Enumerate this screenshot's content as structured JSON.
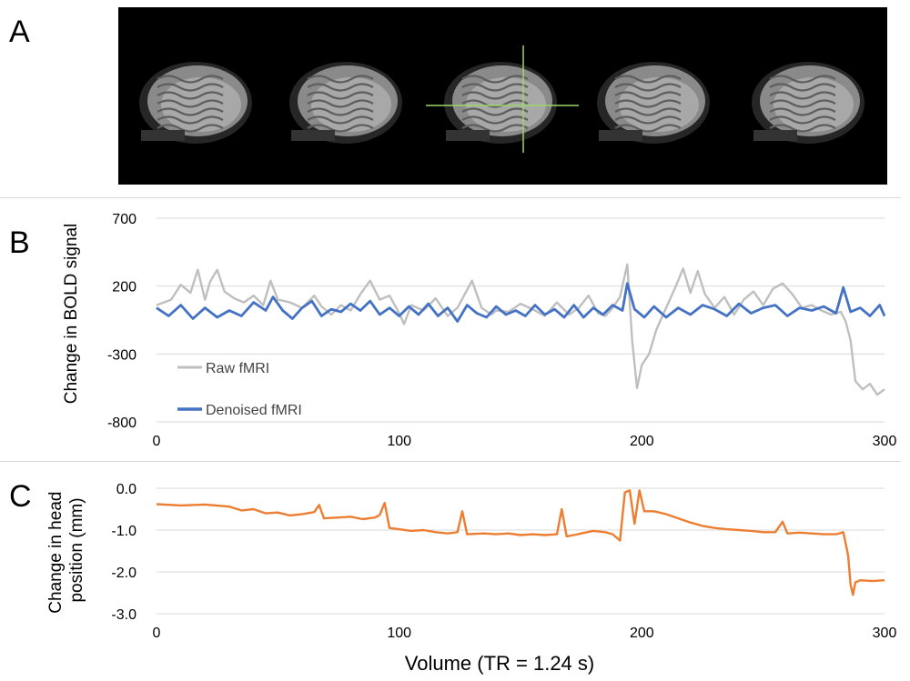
{
  "panels": {
    "a": {
      "label": "A"
    },
    "b": {
      "label": "B"
    },
    "c": {
      "label": "C"
    }
  },
  "brain_panel": {
    "slice_count": 5,
    "crosshair_color": "#9bd56a",
    "crosshair_slice": 3
  },
  "xlabel": "Volume (TR = 1.24 s)",
  "chart_data": [
    {
      "type": "line",
      "panel": "B",
      "ylabel": "Change in BOLD signal",
      "xlim": [
        0,
        300
      ],
      "ylim": [
        -800,
        700
      ],
      "xticks": [
        "0",
        "100",
        "200",
        "300"
      ],
      "yticks": [
        "700",
        "200",
        "-300",
        "-800"
      ],
      "grid": true,
      "legend_position": "bottom-left",
      "series": [
        {
          "name": "Raw fMRI",
          "color": "#bfbfbf",
          "points": [
            [
              0,
              60
            ],
            [
              6,
              100
            ],
            [
              10,
              210
            ],
            [
              14,
              150
            ],
            [
              17,
              320
            ],
            [
              20,
              100
            ],
            [
              22,
              230
            ],
            [
              25,
              320
            ],
            [
              28,
              160
            ],
            [
              32,
              110
            ],
            [
              36,
              80
            ],
            [
              40,
              130
            ],
            [
              44,
              60
            ],
            [
              47,
              240
            ],
            [
              50,
              100
            ],
            [
              55,
              80
            ],
            [
              60,
              40
            ],
            [
              65,
              130
            ],
            [
              68,
              50
            ],
            [
              72,
              -10
            ],
            [
              76,
              60
            ],
            [
              80,
              20
            ],
            [
              84,
              140
            ],
            [
              88,
              240
            ],
            [
              92,
              100
            ],
            [
              96,
              130
            ],
            [
              100,
              0
            ],
            [
              102,
              -80
            ],
            [
              105,
              60
            ],
            [
              110,
              20
            ],
            [
              115,
              110
            ],
            [
              120,
              -20
            ],
            [
              124,
              40
            ],
            [
              127,
              140
            ],
            [
              130,
              240
            ],
            [
              134,
              40
            ],
            [
              138,
              -10
            ],
            [
              140,
              20
            ],
            [
              145,
              10
            ],
            [
              150,
              70
            ],
            [
              155,
              30
            ],
            [
              160,
              -20
            ],
            [
              165,
              80
            ],
            [
              170,
              -10
            ],
            [
              174,
              40
            ],
            [
              178,
              130
            ],
            [
              182,
              0
            ],
            [
              185,
              -20
            ],
            [
              188,
              40
            ],
            [
              191,
              120
            ],
            [
              194,
              360
            ],
            [
              196,
              -200
            ],
            [
              198,
              -550
            ],
            [
              200,
              -380
            ],
            [
              203,
              -300
            ],
            [
              206,
              -120
            ],
            [
              210,
              40
            ],
            [
              214,
              200
            ],
            [
              217,
              330
            ],
            [
              220,
              150
            ],
            [
              223,
              310
            ],
            [
              226,
              140
            ],
            [
              230,
              40
            ],
            [
              234,
              120
            ],
            [
              238,
              -10
            ],
            [
              242,
              100
            ],
            [
              246,
              160
            ],
            [
              250,
              60
            ],
            [
              254,
              180
            ],
            [
              258,
              220
            ],
            [
              262,
              140
            ],
            [
              266,
              40
            ],
            [
              270,
              60
            ],
            [
              274,
              20
            ],
            [
              278,
              -10
            ],
            [
              282,
              10
            ],
            [
              284,
              -60
            ],
            [
              286,
              -200
            ],
            [
              288,
              -500
            ],
            [
              291,
              -560
            ],
            [
              294,
              -520
            ],
            [
              297,
              -600
            ],
            [
              300,
              -560
            ]
          ]
        },
        {
          "name": "Denoised fMRI",
          "color": "#4472c4",
          "points": [
            [
              0,
              40
            ],
            [
              5,
              -20
            ],
            [
              10,
              60
            ],
            [
              15,
              -40
            ],
            [
              20,
              40
            ],
            [
              25,
              -30
            ],
            [
              30,
              20
            ],
            [
              35,
              -20
            ],
            [
              40,
              80
            ],
            [
              45,
              20
            ],
            [
              48,
              120
            ],
            [
              52,
              20
            ],
            [
              56,
              -40
            ],
            [
              60,
              40
            ],
            [
              64,
              90
            ],
            [
              68,
              -20
            ],
            [
              72,
              30
            ],
            [
              76,
              10
            ],
            [
              80,
              70
            ],
            [
              84,
              20
            ],
            [
              88,
              90
            ],
            [
              92,
              -10
            ],
            [
              96,
              40
            ],
            [
              100,
              -20
            ],
            [
              104,
              50
            ],
            [
              108,
              -10
            ],
            [
              112,
              70
            ],
            [
              116,
              -20
            ],
            [
              120,
              40
            ],
            [
              124,
              -60
            ],
            [
              128,
              60
            ],
            [
              132,
              0
            ],
            [
              136,
              -30
            ],
            [
              140,
              50
            ],
            [
              144,
              -10
            ],
            [
              148,
              20
            ],
            [
              152,
              -20
            ],
            [
              156,
              60
            ],
            [
              160,
              -10
            ],
            [
              164,
              30
            ],
            [
              168,
              -30
            ],
            [
              172,
              60
            ],
            [
              176,
              -30
            ],
            [
              180,
              40
            ],
            [
              184,
              -10
            ],
            [
              188,
              60
            ],
            [
              192,
              20
            ],
            [
              194,
              220
            ],
            [
              197,
              30
            ],
            [
              201,
              -30
            ],
            [
              205,
              50
            ],
            [
              210,
              -30
            ],
            [
              215,
              40
            ],
            [
              220,
              -10
            ],
            [
              225,
              60
            ],
            [
              230,
              30
            ],
            [
              235,
              -20
            ],
            [
              240,
              70
            ],
            [
              245,
              0
            ],
            [
              250,
              40
            ],
            [
              255,
              60
            ],
            [
              260,
              -20
            ],
            [
              265,
              40
            ],
            [
              270,
              20
            ],
            [
              275,
              50
            ],
            [
              280,
              0
            ],
            [
              283,
              190
            ],
            [
              286,
              10
            ],
            [
              290,
              40
            ],
            [
              294,
              -20
            ],
            [
              298,
              60
            ],
            [
              300,
              -20
            ]
          ]
        }
      ]
    },
    {
      "type": "line",
      "panel": "C",
      "ylabel": "Change in head position (mm)",
      "xlim": [
        0,
        300
      ],
      "ylim": [
        -3.0,
        0.0
      ],
      "xticks": [
        "0",
        "100",
        "200",
        "300"
      ],
      "yticks": [
        "0.0",
        "-1.0",
        "-2.0",
        "-3.0"
      ],
      "grid": true,
      "series": [
        {
          "name": "",
          "color": "#ed7d31",
          "points": [
            [
              0,
              -0.38
            ],
            [
              10,
              -0.41
            ],
            [
              20,
              -0.39
            ],
            [
              30,
              -0.44
            ],
            [
              35,
              -0.53
            ],
            [
              40,
              -0.5
            ],
            [
              45,
              -0.6
            ],
            [
              50,
              -0.58
            ],
            [
              55,
              -0.65
            ],
            [
              60,
              -0.62
            ],
            [
              65,
              -0.57
            ],
            [
              67,
              -0.4
            ],
            [
              69,
              -0.72
            ],
            [
              75,
              -0.7
            ],
            [
              80,
              -0.68
            ],
            [
              85,
              -0.74
            ],
            [
              90,
              -0.7
            ],
            [
              92,
              -0.64
            ],
            [
              94,
              -0.35
            ],
            [
              96,
              -0.95
            ],
            [
              100,
              -0.98
            ],
            [
              105,
              -1.02
            ],
            [
              110,
              -1.0
            ],
            [
              115,
              -1.05
            ],
            [
              120,
              -1.08
            ],
            [
              124,
              -1.05
            ],
            [
              126,
              -0.55
            ],
            [
              128,
              -1.1
            ],
            [
              135,
              -1.08
            ],
            [
              140,
              -1.1
            ],
            [
              145,
              -1.08
            ],
            [
              150,
              -1.12
            ],
            [
              155,
              -1.1
            ],
            [
              160,
              -1.12
            ],
            [
              165,
              -1.1
            ],
            [
              167,
              -0.5
            ],
            [
              169,
              -1.15
            ],
            [
              172,
              -1.12
            ],
            [
              175,
              -1.08
            ],
            [
              180,
              -1.02
            ],
            [
              185,
              -1.05
            ],
            [
              188,
              -1.1
            ],
            [
              191,
              -1.25
            ],
            [
              193,
              -0.1
            ],
            [
              195,
              -0.05
            ],
            [
              197,
              -0.85
            ],
            [
              199,
              -0.05
            ],
            [
              201,
              -0.55
            ],
            [
              205,
              -0.55
            ],
            [
              210,
              -0.62
            ],
            [
              215,
              -0.72
            ],
            [
              220,
              -0.82
            ],
            [
              225,
              -0.9
            ],
            [
              230,
              -0.95
            ],
            [
              235,
              -0.98
            ],
            [
              240,
              -1.0
            ],
            [
              245,
              -1.02
            ],
            [
              250,
              -1.05
            ],
            [
              255,
              -1.05
            ],
            [
              258,
              -0.8
            ],
            [
              260,
              -1.08
            ],
            [
              265,
              -1.06
            ],
            [
              270,
              -1.08
            ],
            [
              275,
              -1.1
            ],
            [
              280,
              -1.1
            ],
            [
              283,
              -1.05
            ],
            [
              285,
              -1.6
            ],
            [
              286,
              -2.3
            ],
            [
              287,
              -2.55
            ],
            [
              288,
              -2.25
            ],
            [
              290,
              -2.2
            ],
            [
              295,
              -2.22
            ],
            [
              300,
              -2.2
            ]
          ]
        }
      ]
    }
  ]
}
